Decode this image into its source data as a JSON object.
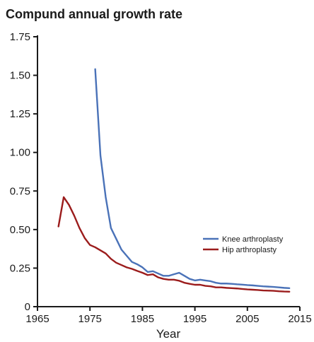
{
  "chart_data": {
    "type": "line",
    "title": "Compund annual growth rate",
    "xlabel": "Year",
    "ylabel": "",
    "xlim": [
      1965,
      2015
    ],
    "ylim": [
      0,
      1.75
    ],
    "xticks": [
      "1965",
      "1975",
      "1985",
      "1995",
      "2005",
      "2015"
    ],
    "yticks": [
      "0",
      "0.25",
      "0.50",
      "0.75",
      "1.00",
      "1.25",
      "1.50",
      "1.75"
    ],
    "legend_position": "right",
    "series": [
      {
        "name": "Knee arthroplasty",
        "color": "#4a72b8",
        "x": [
          1976,
          1977,
          1978,
          1979,
          1980,
          1981,
          1982,
          1983,
          1984,
          1985,
          1986,
          1987,
          1988,
          1989,
          1990,
          1991,
          1992,
          1993,
          1994,
          1995,
          1996,
          1997,
          1998,
          1999,
          2000,
          2001,
          2002,
          2003,
          2004,
          2005,
          2006,
          2007,
          2008,
          2009,
          2010,
          2011,
          2012,
          2013
        ],
        "y": [
          1.54,
          0.98,
          0.71,
          0.51,
          0.44,
          0.37,
          0.33,
          0.29,
          0.275,
          0.255,
          0.225,
          0.23,
          0.215,
          0.2,
          0.2,
          0.21,
          0.22,
          0.2,
          0.18,
          0.17,
          0.175,
          0.17,
          0.165,
          0.155,
          0.15,
          0.15,
          0.148,
          0.145,
          0.143,
          0.14,
          0.138,
          0.135,
          0.132,
          0.13,
          0.128,
          0.125,
          0.122,
          0.12
        ]
      },
      {
        "name": "Hip arthroplasty",
        "color": "#9b1c1c",
        "x": [
          1969,
          1970,
          1971,
          1972,
          1973,
          1974,
          1975,
          1976,
          1977,
          1978,
          1979,
          1980,
          1981,
          1982,
          1983,
          1984,
          1985,
          1986,
          1987,
          1988,
          1989,
          1990,
          1991,
          1992,
          1993,
          1994,
          1995,
          1996,
          1997,
          1998,
          1999,
          2000,
          2001,
          2002,
          2003,
          2004,
          2005,
          2006,
          2007,
          2008,
          2009,
          2010,
          2011,
          2012,
          2013
        ],
        "y": [
          0.52,
          0.71,
          0.66,
          0.59,
          0.51,
          0.445,
          0.4,
          0.385,
          0.365,
          0.345,
          0.31,
          0.285,
          0.27,
          0.255,
          0.245,
          0.232,
          0.22,
          0.205,
          0.21,
          0.19,
          0.18,
          0.175,
          0.175,
          0.168,
          0.155,
          0.148,
          0.142,
          0.142,
          0.135,
          0.132,
          0.125,
          0.125,
          0.122,
          0.12,
          0.118,
          0.115,
          0.112,
          0.11,
          0.108,
          0.105,
          0.104,
          0.103,
          0.1,
          0.098,
          0.097
        ]
      }
    ]
  }
}
